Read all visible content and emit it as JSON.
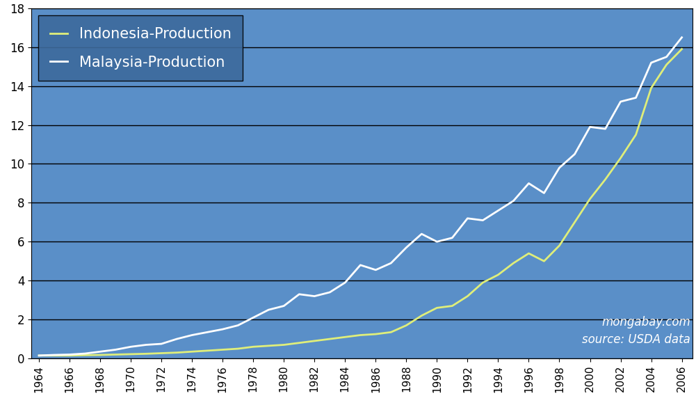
{
  "chart_data": {
    "type": "line",
    "x": [
      1964,
      1965,
      1966,
      1967,
      1968,
      1969,
      1970,
      1971,
      1972,
      1973,
      1974,
      1975,
      1976,
      1977,
      1978,
      1979,
      1980,
      1981,
      1982,
      1983,
      1984,
      1985,
      1986,
      1987,
      1988,
      1989,
      1990,
      1991,
      1992,
      1993,
      1994,
      1995,
      1996,
      1997,
      1998,
      1999,
      2000,
      2001,
      2002,
      2003,
      2004,
      2005,
      2006
    ],
    "series": [
      {
        "name": "Indonesia-Production",
        "color": "#dfee7a",
        "values": [
          0.15,
          0.15,
          0.15,
          0.17,
          0.18,
          0.2,
          0.22,
          0.24,
          0.27,
          0.3,
          0.35,
          0.4,
          0.45,
          0.5,
          0.6,
          0.65,
          0.7,
          0.8,
          0.9,
          1.0,
          1.1,
          1.2,
          1.25,
          1.35,
          1.7,
          2.2,
          2.6,
          2.7,
          3.2,
          3.9,
          4.3,
          4.9,
          5.4,
          5.0,
          5.8,
          7.0,
          8.2,
          9.2,
          10.3,
          11.5,
          13.9,
          15.1,
          15.9
        ]
      },
      {
        "name": "Malaysia-Production",
        "color": "#ffffff",
        "values": [
          0.15,
          0.18,
          0.2,
          0.25,
          0.35,
          0.45,
          0.6,
          0.7,
          0.75,
          1.0,
          1.2,
          1.35,
          1.5,
          1.7,
          2.1,
          2.5,
          2.7,
          3.3,
          3.2,
          3.4,
          3.9,
          4.8,
          4.55,
          4.9,
          5.7,
          6.4,
          6.0,
          6.2,
          7.2,
          7.1,
          7.6,
          8.1,
          9.0,
          8.5,
          9.8,
          10.5,
          11.9,
          11.8,
          13.2,
          13.4,
          15.2,
          15.5,
          16.5
        ]
      }
    ],
    "xlim": [
      1963.5,
      2006.7
    ],
    "xticks": [
      1964,
      1966,
      1968,
      1970,
      1972,
      1974,
      1976,
      1978,
      1980,
      1982,
      1984,
      1986,
      1988,
      1990,
      1992,
      1994,
      1996,
      1998,
      2000,
      2002,
      2004,
      2006
    ],
    "ylim": [
      0,
      18
    ],
    "yticks": [
      0,
      2,
      4,
      6,
      8,
      10,
      12,
      14,
      16,
      18
    ],
    "grid": "y",
    "legend": "upper left",
    "annotations": [
      "mongabay.com",
      "source: USDA data"
    ]
  }
}
